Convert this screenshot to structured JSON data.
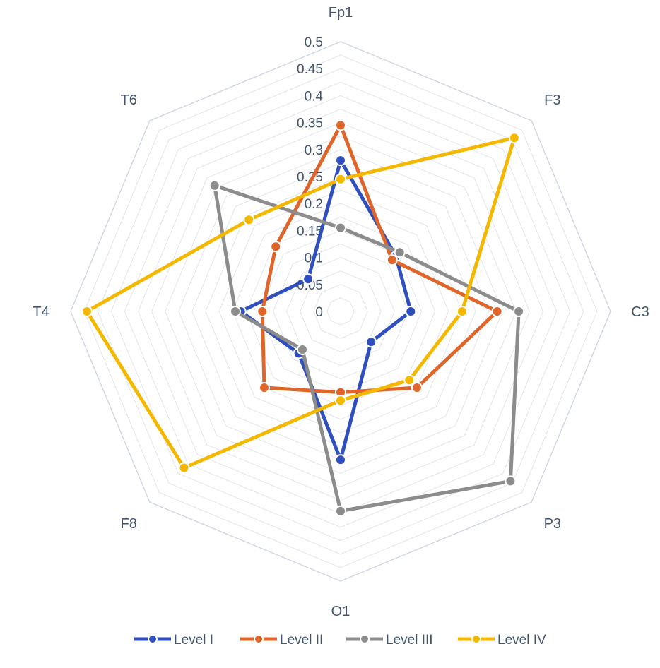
{
  "chart_data": {
    "type": "radar",
    "title": "",
    "axes": [
      "Fp1",
      "F3",
      "C3",
      "P3",
      "O1",
      "F8",
      "T4",
      "T6"
    ],
    "ticks": [
      "0",
      "0.05",
      "0.1",
      "0.15",
      "0.2",
      "0.25",
      "0.3",
      "0.35",
      "0.4",
      "0.45",
      "0.5"
    ],
    "range": [
      0,
      0.5
    ],
    "minor_grid_step": 0.025,
    "grid": true,
    "legend_position": "bottom",
    "series": [
      {
        "name": "Level I",
        "color": "#2e4fbd",
        "values": [
          0.28,
          0.145,
          0.13,
          0.08,
          0.275,
          0.11,
          0.185,
          0.085
        ]
      },
      {
        "name": "Level II",
        "color": "#e0652a",
        "values": [
          0.345,
          0.135,
          0.29,
          0.2,
          0.15,
          0.2,
          0.145,
          0.17
        ]
      },
      {
        "name": "Level III",
        "color": "#8c8c8c",
        "values": [
          0.155,
          0.155,
          0.33,
          0.445,
          0.37,
          0.1,
          0.195,
          0.33
        ]
      },
      {
        "name": "Level IV",
        "color": "#f5b800",
        "values": [
          0.245,
          0.455,
          0.225,
          0.18,
          0.165,
          0.41,
          0.47,
          0.24
        ]
      }
    ]
  }
}
